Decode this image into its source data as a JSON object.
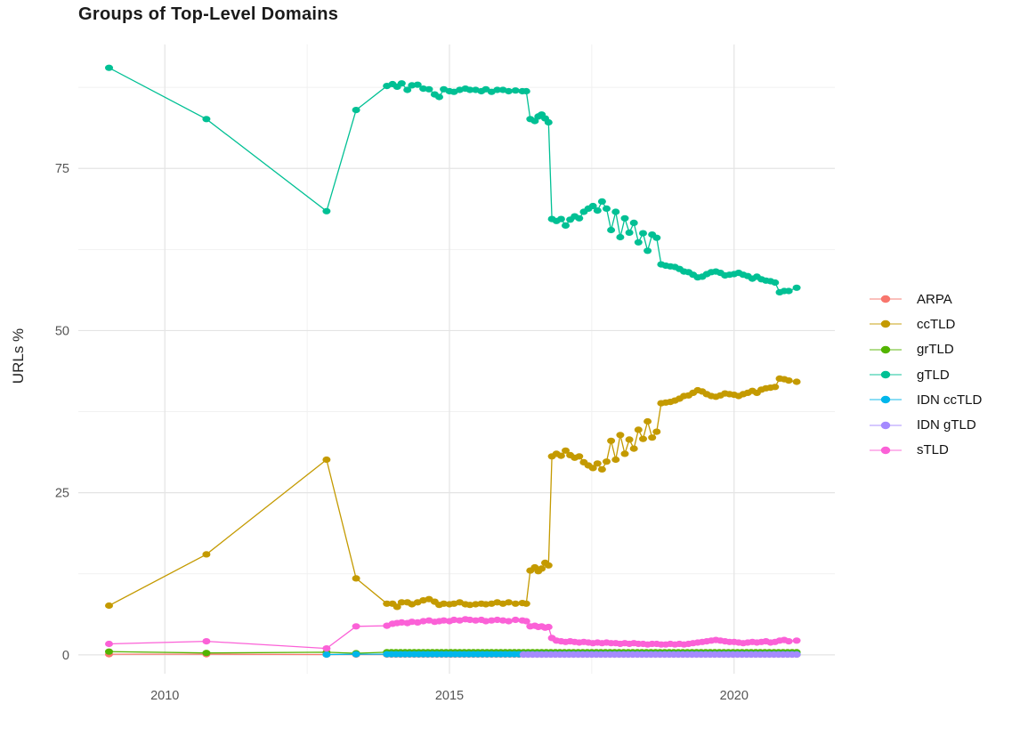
{
  "chart_data": {
    "type": "line",
    "title": "Groups of Top-Level Domains",
    "xlabel": "",
    "ylabel": "URLs %",
    "xlim": [
      2008.48,
      2021.77
    ],
    "ylim": [
      -2.9,
      94.1
    ],
    "x_major_ticks": [
      2010,
      2015,
      2020
    ],
    "x_minor_gridlines": [
      2012.5,
      2017.5
    ],
    "y_major_ticks": [
      0,
      25,
      50,
      75
    ],
    "y_minor_gridlines": [
      12.5,
      37.5,
      62.5,
      87.5
    ],
    "grid": true,
    "legend_position": "right",
    "marker": "filled-circle",
    "colors": {
      "major_grid": "#E4E4E4",
      "minor_grid": "#F1F1F1",
      "tick_text": "#555555",
      "title_text": "#1a1a1a"
    },
    "x_common": [
      2009.02,
      2010.73,
      2012.84,
      2013.36,
      2013.9,
      2014.0,
      2014.08,
      2014.16,
      2014.26,
      2014.34,
      2014.44,
      2014.54,
      2014.64,
      2014.74,
      2014.82,
      2014.9,
      2015.0,
      2015.08,
      2015.18,
      2015.28,
      2015.36,
      2015.46,
      2015.56,
      2015.64,
      2015.74,
      2015.84,
      2015.94,
      2016.04,
      2016.16,
      2016.28,
      2016.35,
      2016.42,
      2016.5,
      2016.56,
      2016.62,
      2016.68,
      2016.74,
      2016.8,
      2016.88,
      2016.96,
      2017.04,
      2017.12,
      2017.2,
      2017.28,
      2017.36,
      2017.44,
      2017.52,
      2017.6,
      2017.68,
      2017.76,
      2017.84,
      2017.92,
      2018.0,
      2018.08,
      2018.16,
      2018.24,
      2018.32,
      2018.4,
      2018.48,
      2018.56,
      2018.64,
      2018.72,
      2018.8,
      2018.88,
      2018.96,
      2019.04,
      2019.12,
      2019.2,
      2019.28,
      2019.36,
      2019.44,
      2019.52,
      2019.6,
      2019.68,
      2019.76,
      2019.84,
      2019.92,
      2020.0,
      2020.08,
      2020.16,
      2020.24,
      2020.32,
      2020.4,
      2020.48,
      2020.56,
      2020.64,
      2020.72,
      2020.8,
      2020.88,
      2020.96,
      2021.1
    ],
    "series": [
      {
        "name": "ARPA",
        "color": "#F8766D",
        "sparse_points": [
          [
            2009.02,
            0.1
          ],
          [
            2010.73,
            0.1
          ],
          [
            2012.84,
            0.05
          ],
          [
            2013.36,
            0.05
          ]
        ],
        "flat_run": {
          "from": 2013.9,
          "to": 2021.1,
          "step": 0.08,
          "value": 0.05
        }
      },
      {
        "name": "ccTLD",
        "color": "#C49A00",
        "values": [
          7.6,
          15.5,
          30.1,
          11.8,
          7.9,
          7.9,
          7.4,
          8.1,
          8.1,
          7.8,
          8.1,
          8.4,
          8.6,
          8.2,
          7.7,
          7.9,
          7.8,
          7.9,
          8.1,
          7.8,
          7.7,
          7.8,
          7.9,
          7.8,
          7.9,
          8.1,
          7.9,
          8.1,
          7.9,
          8.0,
          7.9,
          13.0,
          13.5,
          12.9,
          13.3,
          14.2,
          13.8,
          30.6,
          31.0,
          30.7,
          31.5,
          30.8,
          30.4,
          30.6,
          29.7,
          29.2,
          28.8,
          29.5,
          28.6,
          29.8,
          33.0,
          30.1,
          33.9,
          31.0,
          33.2,
          31.8,
          34.7,
          33.3,
          36.0,
          33.5,
          34.4,
          38.8,
          38.9,
          39.0,
          39.2,
          39.5,
          39.9,
          40.0,
          40.4,
          40.8,
          40.6,
          40.2,
          39.9,
          39.8,
          40.0,
          40.3,
          40.2,
          40.1,
          39.9,
          40.2,
          40.4,
          40.7,
          40.4,
          40.9,
          41.1,
          41.2,
          41.3,
          42.6,
          42.5,
          42.3,
          42.1
        ]
      },
      {
        "name": "grTLD",
        "color": "#53B400",
        "sparse_points": [
          [
            2009.02,
            0.5
          ],
          [
            2010.73,
            0.3
          ],
          [
            2012.84,
            0.4
          ],
          [
            2013.36,
            0.25
          ]
        ],
        "flat_run": {
          "from": 2013.9,
          "to": 2021.1,
          "step": 0.08,
          "value": 0.4
        }
      },
      {
        "name": "gTLD",
        "color": "#00C094",
        "values": [
          90.5,
          82.6,
          68.4,
          84.0,
          87.7,
          88.0,
          87.6,
          88.1,
          87.1,
          87.8,
          87.9,
          87.3,
          87.2,
          86.4,
          86.0,
          87.2,
          86.9,
          86.8,
          87.1,
          87.3,
          87.1,
          87.1,
          86.9,
          87.2,
          86.8,
          87.1,
          87.1,
          86.9,
          87.0,
          86.9,
          86.9,
          82.6,
          82.3,
          83.0,
          83.3,
          82.7,
          82.1,
          67.2,
          66.9,
          67.2,
          66.2,
          67.1,
          67.6,
          67.3,
          68.3,
          68.8,
          69.2,
          68.5,
          69.9,
          68.8,
          65.5,
          68.3,
          64.4,
          67.3,
          65.1,
          66.6,
          63.6,
          65.0,
          62.3,
          64.8,
          64.3,
          60.2,
          60.0,
          59.9,
          59.8,
          59.5,
          59.1,
          59.0,
          58.6,
          58.2,
          58.3,
          58.7,
          59.0,
          59.1,
          58.9,
          58.5,
          58.6,
          58.7,
          58.9,
          58.6,
          58.4,
          58.0,
          58.3,
          57.9,
          57.7,
          57.6,
          57.4,
          55.9,
          56.1,
          56.1,
          56.6
        ]
      },
      {
        "name": "IDN ccTLD",
        "color": "#00B6EB",
        "sparse_points": [
          [
            2012.84,
            0.05
          ],
          [
            2013.36,
            0.1
          ]
        ],
        "flat_run": {
          "from": 2013.9,
          "to": 2021.1,
          "step": 0.08,
          "value": 0.1
        }
      },
      {
        "name": "IDN gTLD",
        "color": "#A58AFF",
        "sparse_points": [],
        "flat_run": {
          "from": 2016.3,
          "to": 2021.1,
          "step": 0.08,
          "value": 0.05
        }
      },
      {
        "name": "sTLD",
        "color": "#FB61D7",
        "values": [
          1.7,
          2.1,
          1.0,
          4.4,
          4.5,
          4.8,
          4.9,
          5.0,
          4.9,
          5.1,
          5.0,
          5.2,
          5.3,
          5.1,
          5.2,
          5.3,
          5.2,
          5.4,
          5.3,
          5.5,
          5.4,
          5.3,
          5.4,
          5.2,
          5.3,
          5.4,
          5.3,
          5.2,
          5.4,
          5.3,
          5.2,
          4.4,
          4.5,
          4.3,
          4.4,
          4.2,
          4.3,
          2.6,
          2.2,
          2.1,
          2.0,
          2.1,
          2.0,
          1.9,
          2.0,
          1.9,
          1.8,
          1.9,
          1.8,
          1.9,
          1.8,
          1.8,
          1.7,
          1.8,
          1.7,
          1.8,
          1.7,
          1.7,
          1.6,
          1.7,
          1.7,
          1.6,
          1.6,
          1.7,
          1.6,
          1.7,
          1.6,
          1.7,
          1.8,
          1.9,
          2.0,
          2.1,
          2.2,
          2.3,
          2.2,
          2.1,
          2.0,
          2.0,
          1.9,
          1.8,
          1.9,
          2.0,
          1.9,
          2.0,
          2.1,
          1.9,
          2.0,
          2.2,
          2.3,
          2.1,
          2.2
        ]
      }
    ]
  }
}
